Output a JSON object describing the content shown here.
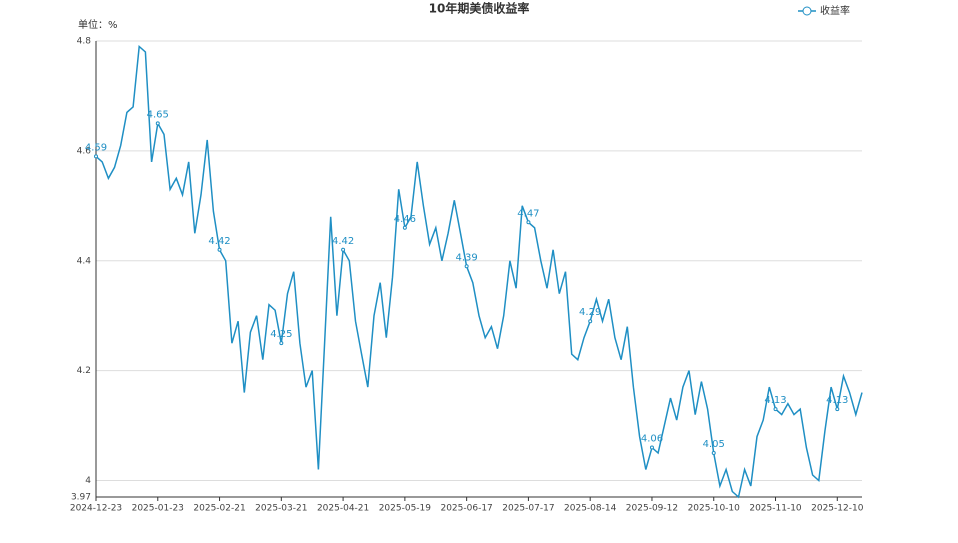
{
  "chart_data": {
    "type": "line",
    "title": "10年期美债收益率",
    "y_unit_label": "单位：%",
    "categories": [
      "2024-12-23",
      null,
      null,
      null,
      null,
      null,
      null,
      null,
      null,
      null,
      "2025-01-23",
      null,
      null,
      null,
      null,
      null,
      null,
      null,
      null,
      null,
      "2025-02-21",
      null,
      null,
      null,
      null,
      null,
      null,
      null,
      null,
      null,
      "2025-03-21",
      null,
      null,
      null,
      null,
      null,
      null,
      null,
      null,
      null,
      "2025-04-21",
      null,
      null,
      null,
      null,
      null,
      null,
      null,
      null,
      null,
      "2025-05-19",
      null,
      null,
      null,
      null,
      null,
      null,
      null,
      null,
      null,
      "2025-06-17",
      null,
      null,
      null,
      null,
      null,
      null,
      null,
      null,
      null,
      "2025-07-17",
      null,
      null,
      null,
      null,
      null,
      null,
      null,
      null,
      null,
      "2025-08-14",
      null,
      null,
      null,
      null,
      null,
      null,
      null,
      null,
      null,
      "2025-09-12",
      null,
      null,
      null,
      null,
      null,
      null,
      null,
      null,
      null,
      "2025-10-10",
      null,
      null,
      null,
      null,
      null,
      null,
      null,
      null,
      null,
      "2025-11-10",
      null,
      null,
      null,
      null,
      null,
      null,
      null,
      null,
      null,
      "2025-12-10",
      null,
      null,
      null,
      null
    ],
    "series": [
      {
        "name": "收益率",
        "color": "#1f8fc4",
        "values": [
          4.59,
          4.58,
          4.55,
          4.57,
          4.61,
          4.67,
          4.68,
          4.79,
          4.78,
          4.58,
          4.65,
          4.63,
          4.53,
          4.55,
          4.52,
          4.58,
          4.45,
          4.52,
          4.62,
          4.49,
          4.42,
          4.4,
          4.25,
          4.29,
          4.16,
          4.27,
          4.3,
          4.22,
          4.32,
          4.31,
          4.25,
          4.34,
          4.38,
          4.25,
          4.17,
          4.2,
          4.02,
          4.25,
          4.48,
          4.3,
          4.42,
          4.4,
          4.29,
          4.23,
          4.17,
          4.3,
          4.36,
          4.26,
          4.37,
          4.53,
          4.46,
          4.48,
          4.58,
          4.5,
          4.43,
          4.46,
          4.4,
          4.45,
          4.51,
          4.45,
          4.39,
          4.36,
          4.3,
          4.26,
          4.28,
          4.24,
          4.3,
          4.4,
          4.35,
          4.5,
          4.47,
          4.46,
          4.4,
          4.35,
          4.42,
          4.34,
          4.38,
          4.23,
          4.22,
          4.26,
          4.29,
          4.33,
          4.29,
          4.33,
          4.26,
          4.22,
          4.28,
          4.17,
          4.08,
          4.02,
          4.06,
          4.05,
          4.1,
          4.15,
          4.11,
          4.17,
          4.2,
          4.12,
          4.18,
          4.13,
          4.05,
          3.99,
          4.02,
          3.98,
          3.97,
          4.02,
          3.99,
          4.08,
          4.11,
          4.17,
          4.13,
          4.12,
          4.14,
          4.12,
          4.13,
          4.06,
          4.01,
          4.0,
          4.09,
          4.17,
          4.13,
          4.19,
          4.16,
          4.12,
          4.16
        ]
      }
    ],
    "ylim": [
      3.97,
      4.8
    ],
    "yticks": [
      3.97,
      4,
      4.2,
      4.4,
      4.6,
      4.8
    ],
    "grid": true,
    "legend": "top-right"
  }
}
